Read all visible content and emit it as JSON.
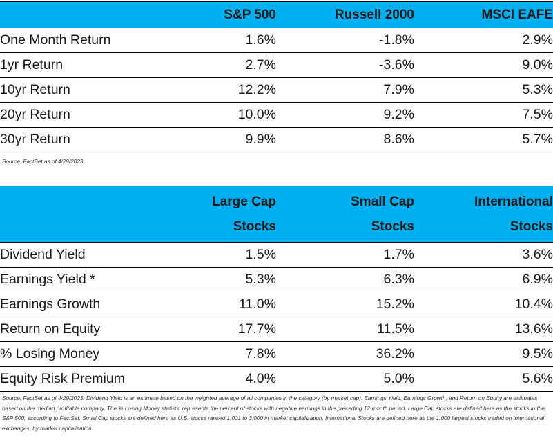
{
  "table1": {
    "headers": [
      "",
      "S&P 500",
      "Russell 2000",
      "MSCI EAFE"
    ],
    "rows": [
      {
        "label": "One Month Return",
        "values": [
          "1.6%",
          "-1.8%",
          "2.9%"
        ]
      },
      {
        "label": "1yr Return",
        "values": [
          "2.7%",
          "-3.6%",
          "9.0%"
        ]
      },
      {
        "label": "10yr Return",
        "values": [
          "12.2%",
          "7.9%",
          "5.3%"
        ]
      },
      {
        "label": "20yr Return",
        "values": [
          "10.0%",
          "9.2%",
          "7.5%"
        ]
      },
      {
        "label": "30yr Return",
        "values": [
          "9.9%",
          "8.6%",
          "5.7%"
        ]
      }
    ],
    "source": "Source: FactSet as of 4/29/2023."
  },
  "table2": {
    "headers": [
      {
        "line1": "",
        "line2": ""
      },
      {
        "line1": "Large Cap",
        "line2": "Stocks"
      },
      {
        "line1": "Small Cap",
        "line2": "Stocks"
      },
      {
        "line1": "International",
        "line2": "Stocks"
      }
    ],
    "rows": [
      {
        "label": "Dividend Yield",
        "values": [
          "1.5%",
          "1.7%",
          "3.6%"
        ]
      },
      {
        "label": "Earnings Yield *",
        "values": [
          "5.3%",
          "6.3%",
          "6.9%"
        ]
      },
      {
        "label": "Earnings Growth",
        "values": [
          "11.0%",
          "15.2%",
          "10.4%"
        ]
      },
      {
        "label": "Return on Equity",
        "values": [
          "17.7%",
          "11.5%",
          "13.6%"
        ]
      },
      {
        "label": "% Losing Money",
        "values": [
          "7.8%",
          "36.2%",
          "9.5%"
        ]
      },
      {
        "label": "Equity Risk Premium",
        "values": [
          "4.0%",
          "5.0%",
          "5.6%"
        ]
      }
    ],
    "source": "Source: FactSet as of 4/29/2023. Dividend Yield is an estimate based on the weighted average of all companies in the category (by market cap). Earnings Yield, Earnings Growth, and Return on Equity are estimates based on the median profitable company. The % Losing Money statistic represents the percent of stocks with negative earnings in the preceding 12-month period. Large Cap stocks are defined here as the stocks in the S&P 500, according to FactSet. Small Cap stocks are defined here as U.S. stocks ranked 1,001 to 3,000 in market capitalization. International Stocks are defined here as the 1,000 largest stocks traded on international exchanges, by market capitalization."
  },
  "colors": {
    "header_background": "#00b0f0",
    "text": "#1a1a1a",
    "border": "#000000"
  }
}
